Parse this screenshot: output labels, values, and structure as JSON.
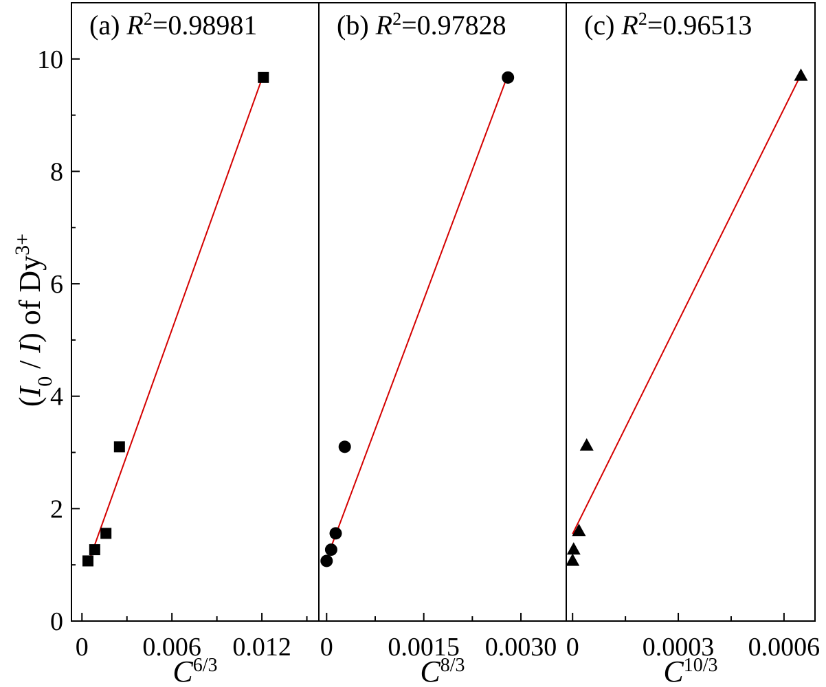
{
  "y_axis": {
    "label_open": "(",
    "label_i0": "I",
    "label_i0_sub": "0",
    "label_slash": " / ",
    "label_i": "I",
    "label_close": ")  of Dy",
    "label_sup": "3+",
    "ticks": [
      "0",
      "2",
      "4",
      "6",
      "8",
      "10"
    ]
  },
  "chart_data": [
    {
      "type": "scatter",
      "panel": "(a)",
      "title_prefix": "(a) ",
      "title_r": "R",
      "title_sup": "2",
      "title_value": "=0.98981",
      "xlabel_base": "C",
      "xlabel_sup": "6/3",
      "xlim": [
        -0.0007,
        0.0158
      ],
      "ylim": [
        0,
        11
      ],
      "xticks": [
        {
          "v": 0,
          "t": "0"
        },
        {
          "v": 0.006,
          "t": "0.006"
        },
        {
          "v": 0.012,
          "t": "0.012"
        }
      ],
      "marker": "square",
      "x": [
        0.0004,
        0.00085,
        0.0016,
        0.0025,
        0.0121
      ],
      "y": [
        1.07,
        1.27,
        1.56,
        3.1,
        9.67
      ],
      "fit": {
        "x": [
          0.0004,
          0.0121
        ],
        "y": [
          1.02,
          9.72
        ]
      }
    },
    {
      "type": "scatter",
      "panel": "(b)",
      "title_prefix": "(b) ",
      "title_r": "R",
      "title_sup": "2",
      "title_value": "=0.97828",
      "xlabel_base": "C",
      "xlabel_sup": "8/3",
      "xlim": [
        -0.00012,
        0.0037
      ],
      "ylim": [
        0,
        11
      ],
      "xticks": [
        {
          "v": 0,
          "t": "0"
        },
        {
          "v": 0.0015,
          "t": "0.0015"
        },
        {
          "v": 0.003,
          "t": "0.0030"
        }
      ],
      "marker": "circle",
      "x": [
        0.0,
        7e-05,
        0.00014,
        0.00028,
        0.0028
      ],
      "y": [
        1.07,
        1.27,
        1.56,
        3.1,
        9.67
      ],
      "fit": {
        "x": [
          7e-05,
          0.0028
        ],
        "y": [
          1.32,
          9.72
        ]
      }
    },
    {
      "type": "scatter",
      "panel": "(c)",
      "title_prefix": "(c) ",
      "title_r": "R",
      "title_sup": "2",
      "title_value": "=0.96513",
      "xlabel_base": "C",
      "xlabel_sup": "10/3",
      "xlim": [
        -1.8e-05,
        0.000688
      ],
      "ylim": [
        0,
        11
      ],
      "xticks": [
        {
          "v": 0,
          "t": "0"
        },
        {
          "v": 0.0003,
          "t": "0.0003"
        },
        {
          "v": 0.0006,
          "t": "0.0006"
        }
      ],
      "marker": "triangle",
      "x": [
        0.0,
        3e-06,
        1.8e-05,
        4e-05,
        0.000648
      ],
      "y": [
        1.07,
        1.27,
        1.6,
        3.12,
        9.7
      ],
      "fit": {
        "x": [
          0.0,
          0.000648
        ],
        "y": [
          1.55,
          9.72
        ]
      }
    }
  ]
}
